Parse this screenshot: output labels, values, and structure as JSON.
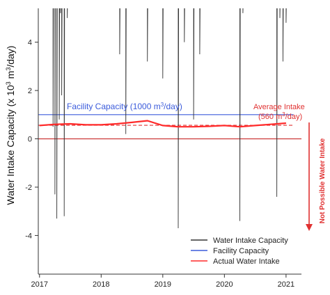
{
  "chart_data": {
    "type": "line",
    "ylabel": {
      "main": "Water Intake Capacity (x 10",
      "sup": "3",
      "unit": " m",
      "unit_sup": "3",
      "tail": "/day)"
    },
    "xlim": [
      2016.98,
      2021.25
    ],
    "ylim": [
      -5.6,
      5.4
    ],
    "x_ticks": [
      {
        "value": 2017,
        "label": "2017"
      },
      {
        "value": 2018,
        "label": "2018"
      },
      {
        "value": 2019,
        "label": "2019"
      },
      {
        "value": 2020,
        "label": "2020"
      },
      {
        "value": 2021,
        "label": "2021"
      }
    ],
    "y_ticks": [
      {
        "value": -4,
        "label": "-4"
      },
      {
        "value": -2,
        "label": "-2"
      },
      {
        "value": 0,
        "label": "0"
      },
      {
        "value": 2,
        "label": "2"
      },
      {
        "value": 4,
        "label": "4"
      }
    ],
    "reference_lines": [
      {
        "name": "facility_capacity",
        "y": 1.0,
        "color": "#3b5bdb",
        "style": "solid"
      },
      {
        "name": "average_intake",
        "y": 0.56,
        "color": "#e03131",
        "style": "dashed"
      },
      {
        "name": "zero_line",
        "y": 0.0,
        "color": "#c92a2a",
        "style": "solid"
      }
    ],
    "series": [
      {
        "name": "Water Intake Capacity",
        "color": "#333333",
        "x": [
          2017.0,
          2017.1,
          2017.18,
          2017.22,
          2017.25,
          2017.28,
          2017.32,
          2017.34,
          2017.36,
          2017.4,
          2017.45,
          2017.5,
          2017.55,
          2017.6,
          2017.65,
          2017.7,
          2017.75,
          2017.85,
          2017.9,
          2017.95,
          2018.0,
          2018.15,
          2018.3,
          2018.35,
          2018.4,
          2018.45,
          2018.5,
          2018.55,
          2018.6,
          2018.65,
          2018.7,
          2018.75,
          2018.8,
          2018.85,
          2018.9,
          2018.95,
          2019.0,
          2019.05,
          2019.1,
          2019.15,
          2019.2,
          2019.25,
          2019.3,
          2019.35,
          2019.4,
          2019.45,
          2019.5,
          2019.55,
          2019.6,
          2019.65,
          2019.7,
          2019.75,
          2019.85,
          2019.95,
          2020.05,
          2020.15,
          2020.2,
          2020.25,
          2020.3,
          2020.35,
          2020.4,
          2020.5,
          2020.6,
          2020.7,
          2020.8,
          2020.85,
          2020.9,
          2020.95,
          2021.0
        ],
        "y": [
          6.0,
          6.0,
          5.5,
          0.5,
          -2.3,
          -3.3,
          0.8,
          5.2,
          1.8,
          -3.2,
          5.0,
          5.4,
          5.5,
          6.0,
          6.0,
          6.0,
          6.0,
          6.0,
          6.0,
          6.0,
          6.0,
          6.0,
          3.5,
          6.0,
          0.2,
          6.0,
          6.0,
          6.0,
          6.0,
          6.0,
          6.0,
          3.2,
          6.0,
          6.0,
          6.0,
          6.0,
          2.5,
          6.0,
          6.0,
          6.0,
          6.0,
          -3.7,
          6.0,
          4.0,
          6.0,
          6.0,
          0.8,
          6.0,
          3.5,
          6.0,
          6.0,
          6.0,
          6.0,
          6.0,
          6.0,
          6.0,
          6.0,
          -3.4,
          5.2,
          6.0,
          6.0,
          6.0,
          6.0,
          6.0,
          6.0,
          -2.4,
          5.0,
          3.2,
          4.8
        ]
      },
      {
        "name": "Facility Capacity",
        "color": "#3b5bdb",
        "x": [
          2017.0,
          2021.0
        ],
        "y": [
          1.0,
          1.0
        ]
      },
      {
        "name": "Actual Water Intake",
        "color": "#ff2a2a",
        "x": [
          2017.0,
          2017.25,
          2017.5,
          2017.75,
          2018.0,
          2018.25,
          2018.5,
          2018.75,
          2019.0,
          2019.25,
          2019.5,
          2019.75,
          2020.0,
          2020.25,
          2020.5,
          2020.75,
          2021.0
        ],
        "y": [
          0.55,
          0.6,
          0.62,
          0.58,
          0.58,
          0.62,
          0.68,
          0.75,
          0.55,
          0.5,
          0.5,
          0.52,
          0.55,
          0.5,
          0.55,
          0.6,
          0.65
        ]
      }
    ],
    "annotations": [
      {
        "name": "facility_capacity_label",
        "pre": "Facility Capacity (1000 m",
        "sup": "3",
        "post": "/day)",
        "color": "#3b5bdb"
      },
      {
        "name": "average_intake_label_line1",
        "text": "Average Intake",
        "color": "#e03131"
      },
      {
        "name": "average_intake_label_line2",
        "pre": "(560 m",
        "sup": "3",
        "post": "/day)",
        "color": "#e03131"
      },
      {
        "name": "not_possible_label",
        "text": "Not Possible Water Intake",
        "color": "#e03131"
      }
    ],
    "legend": {
      "position": "bottom-right"
    }
  }
}
